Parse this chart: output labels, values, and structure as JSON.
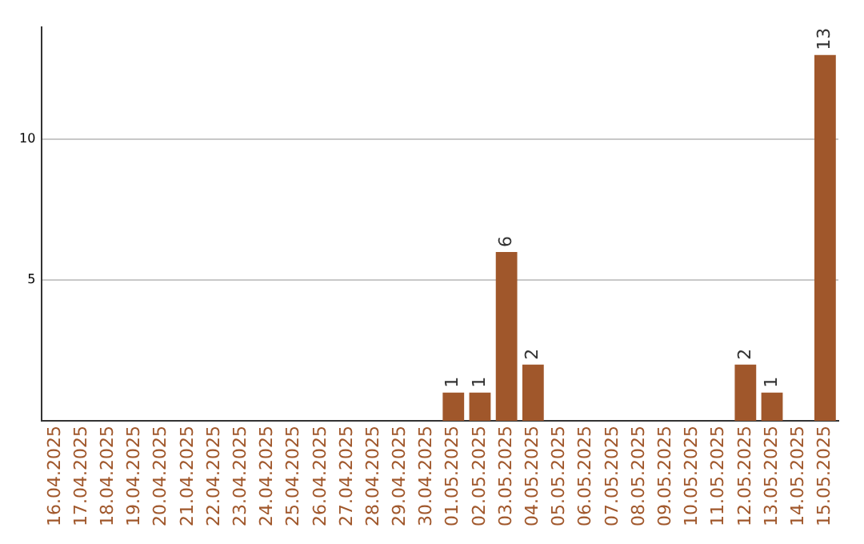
{
  "chart_data": {
    "type": "bar",
    "categories": [
      "16.04.2025",
      "17.04.2025",
      "18.04.2025",
      "19.04.2025",
      "20.04.2025",
      "21.04.2025",
      "22.04.2025",
      "23.04.2025",
      "24.04.2025",
      "25.04.2025",
      "26.04.2025",
      "27.04.2025",
      "28.04.2025",
      "29.04.2025",
      "30.04.2025",
      "01.05.2025",
      "02.05.2025",
      "03.05.2025",
      "04.05.2025",
      "05.05.2025",
      "06.05.2025",
      "07.05.2025",
      "08.05.2025",
      "09.05.2025",
      "10.05.2025",
      "11.05.2025",
      "12.05.2025",
      "13.05.2025",
      "14.05.2025",
      "15.05.2025"
    ],
    "values": [
      0,
      0,
      0,
      0,
      0,
      0,
      0,
      0,
      0,
      0,
      0,
      0,
      0,
      0,
      0,
      1,
      1,
      6,
      2,
      0,
      0,
      0,
      0,
      0,
      0,
      0,
      2,
      1,
      0,
      13
    ],
    "value_labels": [
      null,
      null,
      null,
      null,
      null,
      null,
      null,
      null,
      null,
      null,
      null,
      null,
      null,
      null,
      null,
      "1",
      "1",
      "6",
      "2",
      null,
      null,
      null,
      null,
      null,
      null,
      null,
      "2",
      "1",
      null,
      "13"
    ],
    "color": "#a0572b",
    "ylim": [
      0,
      14
    ],
    "yticks": [
      5,
      10
    ],
    "grid": "y"
  }
}
